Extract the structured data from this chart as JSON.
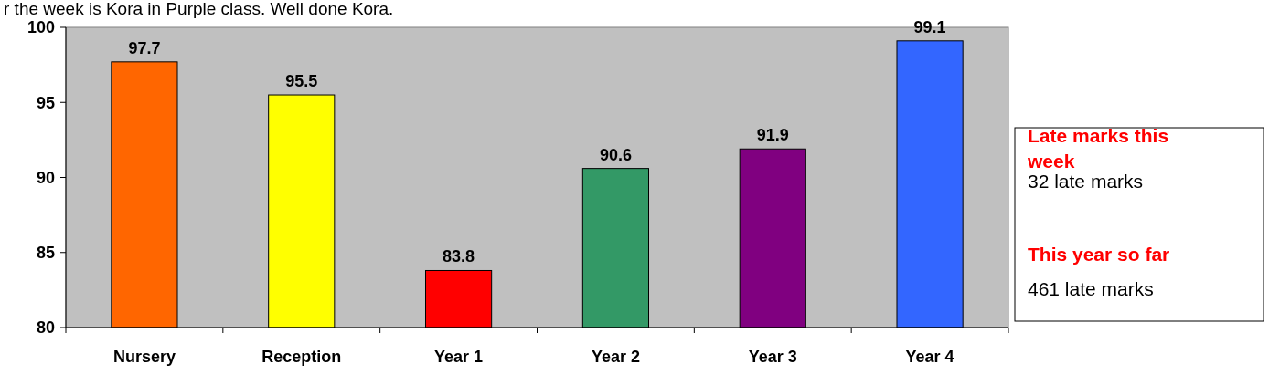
{
  "chart_data": {
    "type": "bar",
    "categories": [
      "Nursery",
      "Reception",
      "Year 1",
      "Year 2",
      "Year 3",
      "Year 4"
    ],
    "values": [
      97.7,
      95.5,
      83.8,
      90.6,
      91.9,
      99.1
    ],
    "colors": [
      "#ff6600",
      "#ffff00",
      "#ff0000",
      "#339966",
      "#800080",
      "#3366ff"
    ],
    "ylim": [
      80,
      100
    ],
    "yticks": [
      80,
      85,
      90,
      95,
      100
    ],
    "data_labels": true,
    "grid": false,
    "annotations": [
      "r the week is Kora in Purple class.  Well done Kora.",
      "Late marks this week",
      "32 late marks",
      "This year so far",
      "461 late marks"
    ]
  }
}
